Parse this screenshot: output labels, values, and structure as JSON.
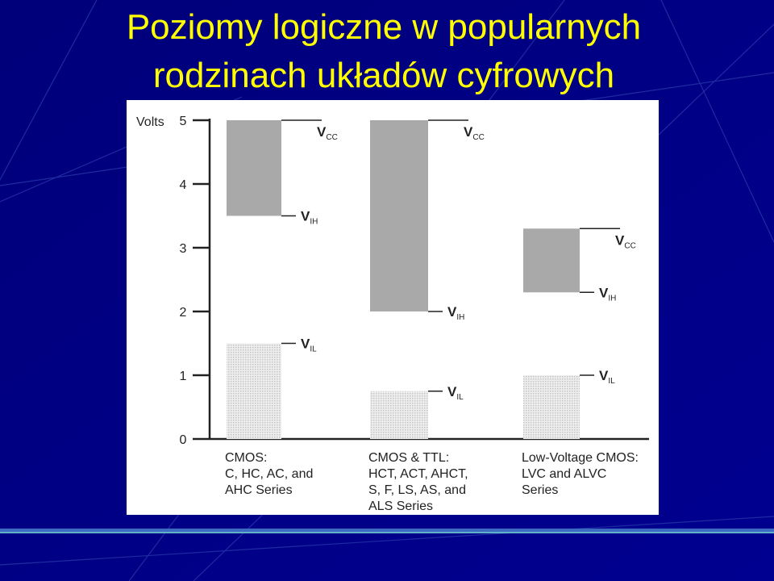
{
  "slide": {
    "title_line1": "Poziomy logiczne w popularnych",
    "title_line2": "rodzinach układów cyfrowych",
    "title_color": "#FFFF00",
    "background_color": "#000080"
  },
  "chart_data": {
    "type": "bar",
    "ylabel": "Volts",
    "ylim": [
      0,
      5
    ],
    "yticks": [
      0,
      1,
      2,
      3,
      4,
      5
    ],
    "categories": [
      [
        "CMOS:",
        "C, HC, AC, and",
        "AHC Series"
      ],
      [
        "CMOS & TTL:",
        "HCT, ACT, AHCT,",
        "S, F, LS, AS, and",
        "ALS Series"
      ],
      [
        "Low-Voltage CMOS:",
        "LVC and ALVC",
        "Series"
      ]
    ],
    "series": [
      {
        "name": "VCC",
        "values": [
          5.0,
          5.0,
          3.3
        ]
      },
      {
        "name": "VIH",
        "values": [
          3.5,
          2.0,
          2.3
        ]
      },
      {
        "name": "VIL",
        "values": [
          1.5,
          0.75,
          1.0
        ]
      }
    ],
    "labels": {
      "vcc_main": "V",
      "vcc_sub": "CC",
      "vih_main": "V",
      "vih_sub": "IH",
      "vil_main": "V",
      "vil_sub": "IL"
    },
    "high_band_color": "#a9a9a9",
    "low_band_color": "#dcdcdc"
  }
}
